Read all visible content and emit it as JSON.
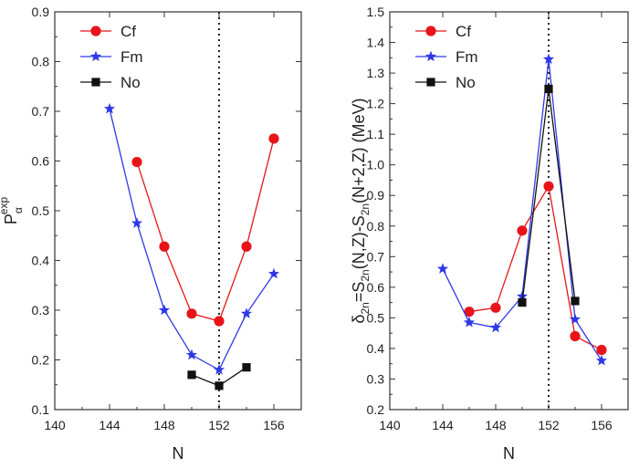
{
  "colors": {
    "Cf": "#e8141a",
    "Fm": "#2f38e6",
    "No": "#111111"
  },
  "chart_data": [
    {
      "type": "line",
      "xlabel": "N",
      "ylabel_main": "P",
      "ylabel_sub": "α",
      "ylabel_sup": "exp",
      "xlim": [
        140,
        158
      ],
      "ylim": [
        0.1,
        0.9
      ],
      "xticks": [
        140,
        144,
        148,
        152,
        156
      ],
      "xtick_labels": [
        "140",
        "144",
        "148",
        "152",
        "156"
      ],
      "yticks": [
        0.1,
        0.2,
        0.3,
        0.4,
        0.5,
        0.6,
        0.7,
        0.8,
        0.9
      ],
      "ytick_labels": [
        "0.1",
        "0.2",
        "0.3",
        "0.4",
        "0.5",
        "0.6",
        "0.7",
        "0.8",
        "0.9"
      ],
      "vline_x": 152,
      "legend_position": "top-left",
      "series": [
        {
          "name": "Cf",
          "marker": "circle",
          "x": [
            146,
            148,
            150,
            152,
            154,
            156
          ],
          "y": [
            0.598,
            0.428,
            0.293,
            0.278,
            0.428,
            0.645
          ]
        },
        {
          "name": "Fm",
          "marker": "star",
          "x": [
            144,
            146,
            148,
            150,
            152,
            154,
            156
          ],
          "y": [
            0.705,
            0.475,
            0.3,
            0.21,
            0.18,
            0.293,
            0.373
          ]
        },
        {
          "name": "No",
          "marker": "square",
          "x": [
            150,
            152,
            154
          ],
          "y": [
            0.17,
            0.148,
            0.185
          ]
        }
      ]
    },
    {
      "type": "line",
      "xlabel": "N",
      "ylabel": "δ2n=S2n(N,Z)-S2n(N+2,Z) (MeV)",
      "xlim": [
        140,
        158
      ],
      "ylim": [
        0.2,
        1.5
      ],
      "xticks": [
        140,
        144,
        148,
        152,
        156
      ],
      "xtick_labels": [
        "140",
        "144",
        "148",
        "152",
        "156"
      ],
      "yticks": [
        0.2,
        0.3,
        0.4,
        0.5,
        0.6,
        0.7,
        0.8,
        0.9,
        1.0,
        1.1,
        1.2,
        1.3,
        1.4,
        1.5
      ],
      "ytick_labels": [
        "0.2",
        "0.3",
        "0.4",
        "0.5",
        "0.6",
        "0.7",
        "0.8",
        "0.9",
        "1.0",
        "1.1",
        "1.2",
        "1.3",
        "1.4",
        "1.5"
      ],
      "vline_x": 152,
      "legend_position": "top-left",
      "series": [
        {
          "name": "Cf",
          "marker": "circle",
          "x": [
            146,
            148,
            150,
            152,
            154,
            156
          ],
          "y": [
            0.52,
            0.533,
            0.785,
            0.93,
            0.44,
            0.395
          ]
        },
        {
          "name": "Fm",
          "marker": "star",
          "x": [
            144,
            146,
            148,
            150,
            152,
            154,
            156
          ],
          "y": [
            0.66,
            0.485,
            0.468,
            0.57,
            1.345,
            0.495,
            0.36
          ]
        },
        {
          "name": "No",
          "marker": "square",
          "x": [
            150,
            152,
            154
          ],
          "y": [
            0.55,
            1.248,
            0.555
          ]
        }
      ]
    }
  ]
}
